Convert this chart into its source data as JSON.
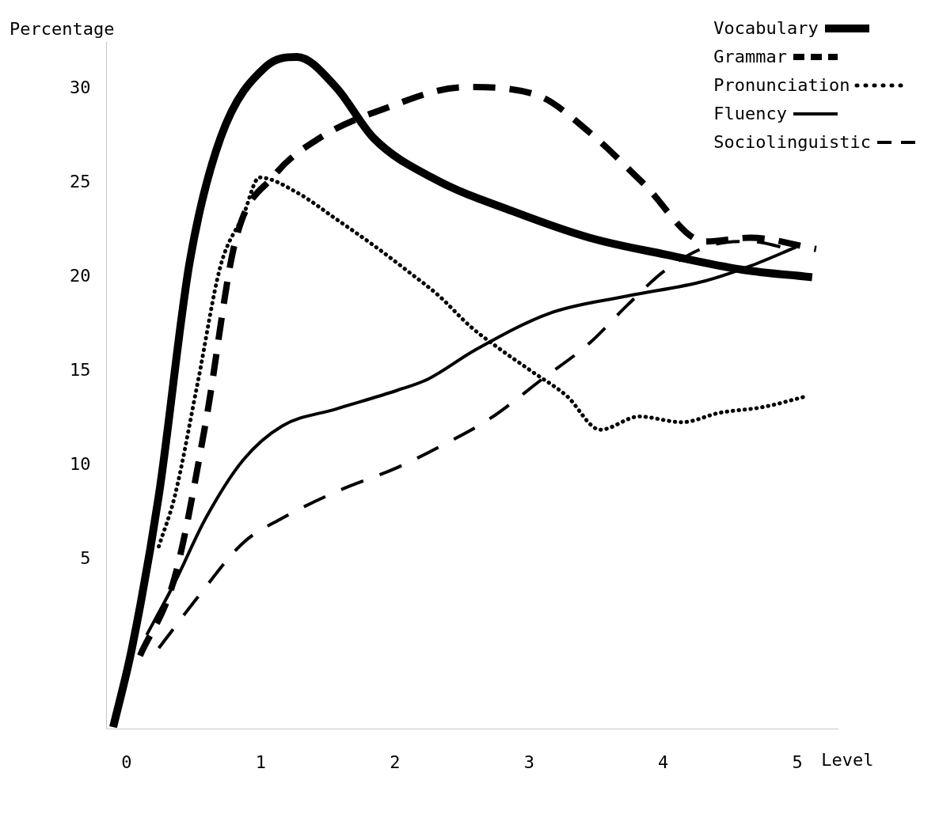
{
  "chart_data": {
    "type": "line",
    "xlabel": "Level",
    "ylabel": "Percentage",
    "xlim": [
      -0.15,
      5.3
    ],
    "ylim": [
      -4,
      32.5
    ],
    "xticks": [
      0,
      1,
      2,
      3,
      4,
      5
    ],
    "yticks": [
      5,
      10,
      15,
      20,
      25,
      30
    ],
    "grid": false,
    "legend": "top right",
    "marker": "none",
    "series": [
      {
        "name": "Vocabulary",
        "color": "#000000",
        "line_style": "solid",
        "x": [
          -0.1,
          0.04,
          0.24,
          0.47,
          0.7,
          1.04,
          1.27,
          1.56,
          1.84,
          2.3,
          2.88,
          3.45,
          4.02,
          4.59,
          5.11
        ],
        "values": [
          -3.9,
          0.3,
          8.4,
          20.8,
          27.4,
          31.2,
          31.7,
          30.1,
          27.4,
          25.2,
          23.5,
          22.1,
          21.2,
          20.4,
          20.0
        ]
      },
      {
        "name": "Grammar",
        "color": "#000000",
        "line_style": "dashed",
        "x": [
          0.1,
          0.36,
          0.59,
          0.81,
          1.1,
          1.44,
          1.9,
          2.53,
          3.05,
          3.45,
          3.85,
          4.31,
          4.65,
          5.14
        ],
        "values": [
          -0.1,
          4.1,
          12.3,
          21.9,
          25.4,
          27.4,
          28.9,
          30.1,
          29.7,
          27.7,
          25.0,
          21.9,
          22.1,
          21.5
        ]
      },
      {
        "name": "Pronunciation",
        "color": "#000000",
        "line_style": "dotted",
        "x": [
          0.24,
          0.36,
          0.53,
          0.7,
          0.87,
          0.99,
          1.27,
          1.56,
          1.84,
          2.1,
          2.33,
          2.56,
          2.76,
          3.02,
          3.28,
          3.53,
          3.82,
          4.14,
          4.42,
          4.74,
          5.08
        ],
        "values": [
          5.7,
          8.4,
          14.4,
          20.6,
          23.3,
          25.3,
          24.5,
          23.1,
          21.7,
          20.3,
          19.0,
          17.4,
          16.3,
          15.0,
          13.7,
          11.9,
          12.6,
          12.3,
          12.8,
          13.1,
          13.7
        ]
      },
      {
        "name": "Fluency",
        "color": "#000000",
        "line_style": "solid",
        "x": [
          0.15,
          0.36,
          0.59,
          0.87,
          1.16,
          1.56,
          2.02,
          2.25,
          2.59,
          3.16,
          3.73,
          4.31,
          4.65,
          4.99
        ],
        "values": [
          1.0,
          3.8,
          7.2,
          10.3,
          12.1,
          13.0,
          14.0,
          14.6,
          16.1,
          18.1,
          19.0,
          19.8,
          20.6,
          21.6
        ]
      },
      {
        "name": "Sociolinguistic",
        "color": "#000000",
        "line_style": "dashed",
        "x": [
          0.24,
          0.53,
          0.87,
          1.16,
          1.56,
          2.02,
          2.36,
          2.71,
          3.1,
          3.45,
          3.73,
          4.02,
          4.36,
          4.65,
          4.99
        ],
        "values": [
          0.3,
          3.0,
          5.9,
          7.2,
          8.6,
          9.9,
          11.1,
          12.5,
          14.6,
          16.5,
          18.5,
          20.4,
          21.7,
          21.9,
          21.4
        ]
      }
    ]
  }
}
